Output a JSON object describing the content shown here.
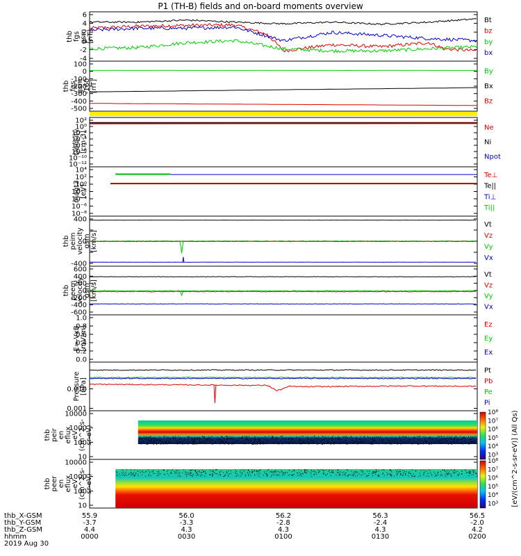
{
  "title": "P1 (TH-B) fields and on-board moments overview",
  "colors": {
    "black": "#000000",
    "red": "#dd0000",
    "green": "#00cc00",
    "blue": "#0000cc",
    "yellow": "#ffee00"
  },
  "panels": [
    {
      "id": "fgs",
      "ylabel": [
        "thb",
        "fgs",
        "gsm",
        "[nT]"
      ],
      "yticks": [
        "6",
        "4",
        "2",
        "0",
        "-2",
        "-4"
      ],
      "legend": [
        {
          "t": "Bt",
          "c": "black"
        },
        {
          "t": "bz",
          "c": "red"
        },
        {
          "t": "by",
          "c": "green"
        },
        {
          "t": "bx",
          "c": "blue"
        }
      ]
    },
    {
      "id": "fgs-pos",
      "ylabel": [
        "thb",
        "fgs",
        "gsm",
        "-160",
        "[nT]"
      ],
      "yticks": [
        "100",
        "0",
        "-100",
        "-200",
        "-300",
        "-400",
        "-500"
      ],
      "legend": [
        {
          "t": "By",
          "c": "green"
        },
        {
          "t": "Bx",
          "c": "black"
        },
        {
          "t": "Bz",
          "c": "red"
        }
      ]
    },
    {
      "id": "density",
      "ylabel": [
        "Density",
        "[cm-3]"
      ],
      "yticks": [
        "10²",
        "10⁰",
        "10⁻²",
        "10⁻⁴",
        "10⁻⁶",
        "10⁻⁸",
        "10⁻¹⁰",
        "10⁻¹²"
      ],
      "legend": [
        {
          "t": "Ne",
          "c": "red"
        },
        {
          "t": "Ni",
          "c": "black"
        },
        {
          "t": "Npot",
          "c": "blue"
        }
      ]
    },
    {
      "id": "temp",
      "ylabel": [
        "magt3",
        "[eV]"
      ],
      "yticks": [
        "10⁴",
        "10²",
        "10⁰",
        "10⁻²",
        "10⁻⁴",
        "10⁻⁶",
        "10⁻⁸"
      ],
      "legend": [
        {
          "t": "Te⊥",
          "c": "red"
        },
        {
          "t": "Te||",
          "c": "black"
        },
        {
          "t": "Ti⊥",
          "c": "blue"
        },
        {
          "t": "Ti||",
          "c": "green"
        }
      ]
    },
    {
      "id": "peim",
      "ylabel": [
        "thb",
        "peim",
        "velocity",
        "gsm",
        "[km/s]"
      ],
      "yticks": [
        "400",
        "",
        "0",
        "",
        "-400"
      ],
      "legend": [
        {
          "t": "Vt",
          "c": "black"
        },
        {
          "t": "Vz",
          "c": "red"
        },
        {
          "t": "Vy",
          "c": "green"
        },
        {
          "t": "Vx",
          "c": "blue"
        }
      ]
    },
    {
      "id": "peem",
      "ylabel": [
        "thb",
        "peem",
        "velocity",
        "gsm",
        "[km/s]"
      ],
      "yticks": [
        "600",
        "400",
        "200",
        "0",
        "-200",
        "-400",
        "-600"
      ],
      "legend": [
        {
          "t": "Vt",
          "c": "black"
        },
        {
          "t": "Vz",
          "c": "red"
        },
        {
          "t": "Vy",
          "c": "green"
        },
        {
          "t": "Vx",
          "c": "blue"
        }
      ]
    },
    {
      "id": "efield",
      "ylabel": [
        "E=-VxB",
        "[mV/m]"
      ],
      "yticks": [
        "1.0",
        "0.8",
        "0.6",
        "0.4",
        "0.2",
        "0.0"
      ],
      "legend": [
        {
          "t": "Ez",
          "c": "red"
        },
        {
          "t": "Ey",
          "c": "green"
        },
        {
          "t": "Ex",
          "c": "blue"
        }
      ]
    },
    {
      "id": "pressure",
      "ylabel": [
        "Pressure",
        "[nPa]"
      ],
      "yticks": [
        "0.010",
        "0.001"
      ],
      "legend": [
        {
          "t": "Pt",
          "c": "black"
        },
        {
          "t": "Pb",
          "c": "red"
        },
        {
          "t": "Pe",
          "c": "green"
        },
        {
          "t": "Pi",
          "c": "blue"
        }
      ]
    },
    {
      "id": "peir",
      "ylabel": [
        "thb",
        "peir",
        "en",
        "eflux",
        "eV",
        "(cm^2-s-",
        "sr-eV)"
      ],
      "yticks": [
        "10000",
        "1000",
        "100",
        "10"
      ]
    },
    {
      "id": "peer",
      "ylabel": [
        "thb",
        "peer",
        "en",
        "eflux",
        "eV",
        "(cm^2-s-",
        "sr-eV)"
      ],
      "yticks": [
        "10000",
        "1000",
        "100",
        "10"
      ]
    }
  ],
  "colorbar": {
    "ticks": [
      "10⁸",
      "10⁷",
      "10⁶",
      "10⁵",
      "10⁴",
      "10³",
      "10⁸",
      "10⁷",
      "10⁶",
      "10⁵",
      "10⁴",
      "10³"
    ],
    "label": "[eV/(cm^2-s-sr-eV)] (All Qs)"
  },
  "xaxis": {
    "rows": [
      {
        "label": "thb_X-GSM",
        "vals": [
          "55.9",
          "56.0",
          "56.2",
          "56.3",
          "56.5"
        ]
      },
      {
        "label": "thb_Y-GSM",
        "vals": [
          "-3.7",
          "-3.3",
          "-2.8",
          "-2.4",
          "-2.0"
        ]
      },
      {
        "label": "thb_Z-GSM",
        "vals": [
          "4.4",
          "4.3",
          "4.3",
          "4.3",
          "4.2"
        ]
      },
      {
        "label": "hhmm",
        "vals": [
          "0000",
          "0030",
          "0100",
          "0130",
          "0200"
        ]
      }
    ],
    "date": "2019 Aug 30"
  },
  "chart_data": {
    "type": "line",
    "title": "P1 (TH-B) fields and on-board moments overview",
    "x_ticks_hhmm": [
      "0000",
      "0030",
      "0100",
      "0130",
      "0200"
    ],
    "xlim": [
      "00:00",
      "02:00"
    ],
    "panels": [
      {
        "name": "fgs gsm [nT]",
        "ylim": [
          -5,
          6
        ],
        "series": [
          {
            "name": "Bt",
            "t": [
              0,
              15,
              30,
              45,
              60,
              75,
              90,
              105,
              120
            ],
            "values": [
              4,
              4,
              4.5,
              4,
              3.6,
              4,
              3.5,
              4,
              4.8
            ]
          },
          {
            "name": "bz",
            "t": [
              0,
              15,
              30,
              45,
              55,
              60,
              75,
              90,
              105,
              110,
              120
            ],
            "values": [
              2.5,
              3,
              3.2,
              3.3,
              1,
              -3,
              -1.5,
              -2,
              -1,
              -2.5,
              -3
            ]
          },
          {
            "name": "by",
            "t": [
              0,
              15,
              30,
              45,
              60,
              75,
              90,
              105,
              120
            ],
            "values": [
              -2.5,
              -2.2,
              -1,
              -0.5,
              -2.5,
              -3,
              -3,
              -2.5,
              -2
            ]
          },
          {
            "name": "bx",
            "t": [
              0,
              15,
              30,
              45,
              60,
              75,
              90,
              105,
              120
            ],
            "values": [
              2,
              2.5,
              2.5,
              2.8,
              -0.5,
              1.5,
              0.8,
              0,
              -0.5
            ]
          }
        ]
      },
      {
        "name": "fgs gsm -160 [nT]",
        "ylim": [
          -550,
          100
        ],
        "series": [
          {
            "name": "By",
            "t": [
              0,
              120
            ],
            "values": [
              0,
              0
            ]
          },
          {
            "name": "Bx",
            "t": [
              0,
              120
            ],
            "values": [
              -300,
              -240
            ]
          },
          {
            "name": "Bz",
            "t": [
              0,
              120
            ],
            "values": [
              -460,
              -490
            ]
          }
        ]
      },
      {
        "name": "Density [cm-3]",
        "scale": "log",
        "ylim": [
          1e-13,
          100
        ],
        "series": [
          {
            "name": "Ne",
            "t": [
              0,
              120
            ],
            "values": [
              10,
              10
            ]
          },
          {
            "name": "Ni",
            "t": [
              0,
              120
            ],
            "values": [
              10,
              15
            ]
          }
        ]
      },
      {
        "name": "magt3 [eV]",
        "scale": "log",
        "ylim": [
          1e-09,
          10000
        ],
        "series": [
          {
            "name": "Te⊥",
            "t": [
              0,
              120
            ],
            "values": [
              0.8,
              0.8
            ]
          },
          {
            "name": "Ti⊥",
            "t": [
              0,
              120
            ],
            "values": [
              300,
              300
            ]
          },
          {
            "name": "Ti||",
            "t": [
              8,
              25
            ],
            "values": [
              400,
              400
            ]
          }
        ]
      },
      {
        "name": "peim velocity gsm [km/s]",
        "ylim": [
          -450,
          450
        ],
        "series": [
          {
            "name": "Vt",
            "t": [
              0,
              120
            ],
            "values": [
              400,
              400
            ]
          },
          {
            "name": "Vz",
            "t": [
              0,
              120
            ],
            "values": [
              0,
              0
            ]
          },
          {
            "name": "Vy",
            "t": [
              0,
              120
            ],
            "values": [
              0,
              0
            ]
          },
          {
            "name": "Vx",
            "t": [
              0,
              120
            ],
            "values": [
              -400,
              -400
            ]
          }
        ]
      },
      {
        "name": "peem velocity gsm [km/s]",
        "ylim": [
          -650,
          650
        ],
        "series": [
          {
            "name": "Vt",
            "t": [
              0,
              120
            ],
            "values": [
              390,
              390
            ]
          },
          {
            "name": "Vz",
            "t": [
              0,
              120
            ],
            "values": [
              -30,
              -30
            ]
          },
          {
            "name": "Vy",
            "t": [
              0,
              120
            ],
            "values": [
              -10,
              -10
            ]
          },
          {
            "name": "Vx",
            "t": [
              0,
              120
            ],
            "values": [
              -380,
              -380
            ]
          }
        ]
      },
      {
        "name": "E=-VxB [mV/m]",
        "ylim": [
          0,
          1
        ],
        "series": []
      },
      {
        "name": "Pressure [nPa]",
        "scale": "log",
        "ylim": [
          0.0008,
          0.05
        ],
        "series": [
          {
            "name": "Pt",
            "t": [
              0,
              120
            ],
            "values": [
              0.025,
              0.025
            ]
          },
          {
            "name": "Pb",
            "t": [
              0,
              60,
              65,
              100,
              120
            ],
            "values": [
              0.007,
              0.007,
              0.005,
              0.006,
              0.0065
            ]
          },
          {
            "name": "Pe",
            "t": [
              0,
              120
            ],
            "values": [
              0.013,
              0.013
            ]
          },
          {
            "name": "Pi",
            "t": [
              0,
              120
            ],
            "values": [
              0.012,
              0.012
            ]
          }
        ]
      },
      {
        "name": "peir en eflux",
        "type": "heatmap",
        "ylim": [
          5,
          20000
        ],
        "data_start_hhmm": "0015"
      },
      {
        "name": "peer en eflux",
        "type": "heatmap",
        "ylim": [
          5,
          20000
        ],
        "data_start_hhmm": "0008"
      }
    ]
  }
}
